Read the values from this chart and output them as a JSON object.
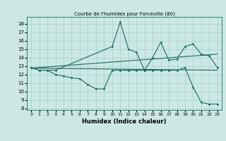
{
  "title": "Courbe de l'humidex pour Forceville (80)",
  "xlabel": "Humidex (Indice chaleur)",
  "background_color": "#cce8e4",
  "grid_color": "#aad4d0",
  "line_color": "#1a6b5e",
  "xlim": [
    -0.5,
    23.5
  ],
  "ylim": [
    7.8,
    18.8
  ],
  "yticks": [
    8,
    9,
    10,
    11,
    12,
    13,
    14,
    15,
    16,
    17,
    18
  ],
  "xticks": [
    0,
    1,
    2,
    3,
    4,
    5,
    6,
    7,
    8,
    9,
    10,
    11,
    12,
    13,
    14,
    15,
    16,
    17,
    18,
    19,
    20,
    21,
    22,
    23
  ],
  "series1_x": [
    0,
    1,
    2,
    3,
    4,
    5,
    6,
    7,
    8,
    9,
    10,
    11,
    12,
    13,
    14,
    15,
    16,
    17,
    18,
    19,
    20,
    21,
    22,
    23
  ],
  "series1_y": [
    12.8,
    12.5,
    12.5,
    12.0,
    11.8,
    11.6,
    11.5,
    10.8,
    10.3,
    10.3,
    12.5,
    12.5,
    12.5,
    12.5,
    12.5,
    12.5,
    12.5,
    12.5,
    12.5,
    12.8,
    10.5,
    8.7,
    8.5,
    8.5
  ],
  "series2_x": [
    0,
    1,
    2,
    3,
    10,
    11,
    12,
    13,
    14,
    15,
    16,
    17,
    18,
    19,
    20,
    21,
    22,
    23
  ],
  "series2_y": [
    12.8,
    12.5,
    12.5,
    12.5,
    15.3,
    18.2,
    15.0,
    14.6,
    12.5,
    14.0,
    15.8,
    13.7,
    13.8,
    15.3,
    15.6,
    14.4,
    14.2,
    12.8
  ],
  "trend1_x": [
    0,
    23
  ],
  "trend1_y": [
    12.75,
    12.5
  ],
  "trend2_x": [
    0,
    23
  ],
  "trend2_y": [
    12.75,
    14.4
  ]
}
